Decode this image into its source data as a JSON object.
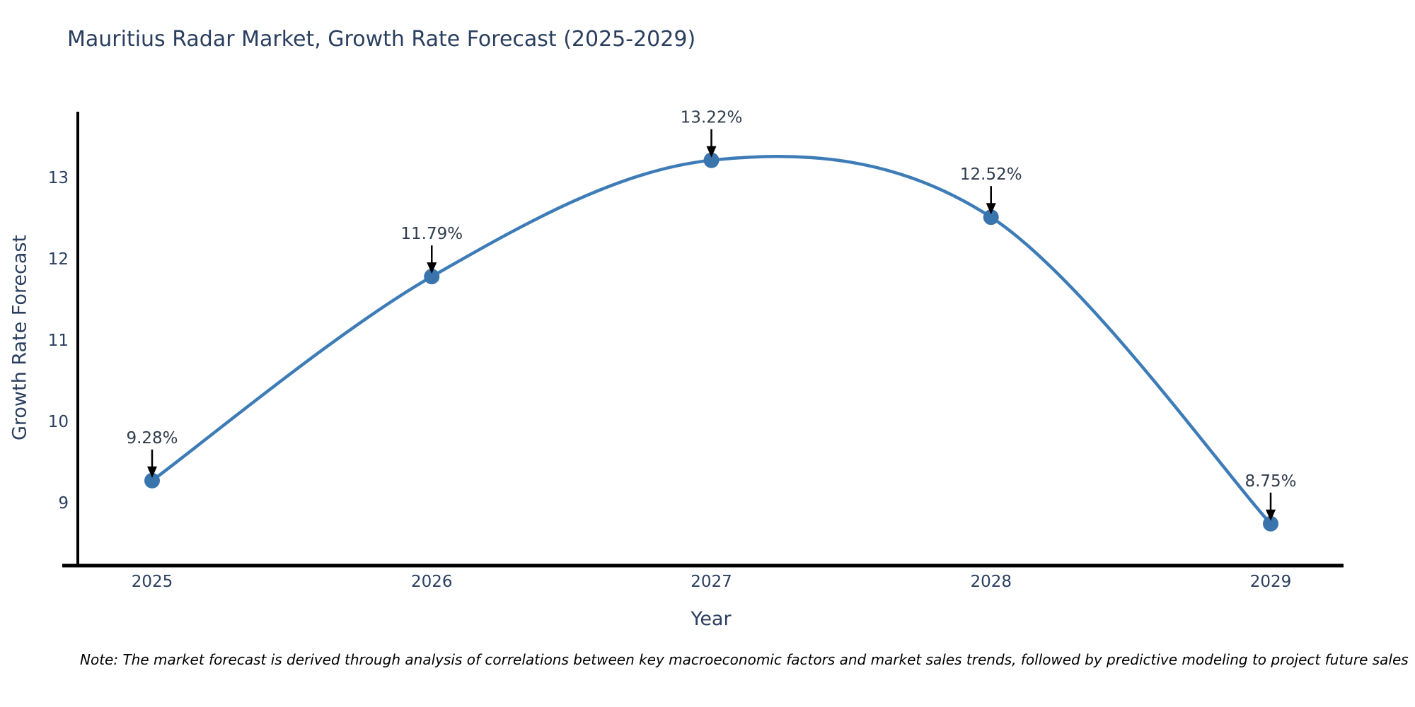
{
  "title": "Mauritius Radar Market, Growth Rate Forecast (2025-2029)",
  "x_axis": {
    "label": "Year",
    "ticks": [
      "2025",
      "2026",
      "2027",
      "2028",
      "2029"
    ]
  },
  "y_axis": {
    "label": "Growth Rate Forecast",
    "ticks": [
      "9",
      "10",
      "11",
      "12",
      "13"
    ]
  },
  "note": "Note: The market forecast is derived through analysis of correlations between key macroeconomic factors and market sales trends, followed by predictive modeling to project future sales",
  "colors": {
    "background": "#ffffff",
    "line": "#3e7cb7",
    "marker": "#3a74ad",
    "axis_line": "#000000",
    "arrow": "#000000",
    "title_text": "#2a3f5f",
    "axis_text": "#2a3f5f",
    "annotation_text": "#2f3b4c"
  },
  "chart_data": {
    "type": "line",
    "title": "Mauritius Radar Market, Growth Rate Forecast (2025-2029)",
    "xlabel": "Year",
    "ylabel": "Growth Rate Forecast",
    "x": [
      2025,
      2026,
      2027,
      2028,
      2029
    ],
    "values": [
      9.28,
      11.79,
      13.22,
      12.52,
      8.75
    ],
    "point_labels": [
      "9.28%",
      "11.79%",
      "13.22%",
      "12.52%",
      "8.75%"
    ],
    "ylim": [
      8.2,
      13.8
    ],
    "xlim": [
      2024.68,
      2029.26
    ],
    "line_shape": "spline",
    "markers": true,
    "grid": false,
    "legend": "none",
    "annotation_style": "value label above each point with downward arrow"
  }
}
